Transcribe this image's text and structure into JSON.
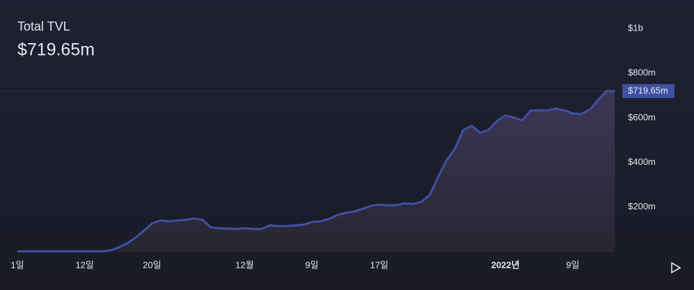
{
  "chart_data": {
    "type": "area",
    "title": "Total TVL",
    "subtitle": "$719.65m",
    "categories": [
      "1일",
      null,
      null,
      null,
      null,
      null,
      null,
      null,
      "12일",
      null,
      null,
      null,
      null,
      null,
      null,
      null,
      "20일",
      null,
      null,
      null,
      null,
      null,
      null,
      null,
      null,
      null,
      null,
      "12월",
      null,
      null,
      null,
      null,
      null,
      null,
      null,
      "9일",
      null,
      null,
      null,
      null,
      null,
      null,
      null,
      "17일",
      null,
      null,
      null,
      null,
      null,
      null,
      null,
      null,
      null,
      null,
      null,
      null,
      null,
      null,
      "2022년",
      null,
      null,
      null,
      null,
      null,
      null,
      null,
      "9일",
      null,
      null,
      null,
      null,
      null
    ],
    "series": [
      {
        "color": "#3f51a3",
        "values": [
          2,
          2,
          2,
          2,
          2,
          2,
          2,
          2,
          2,
          2,
          2,
          6,
          19,
          37,
          62,
          93,
          127,
          140,
          136,
          140,
          143,
          149,
          143,
          109,
          105,
          104,
          102,
          105,
          102,
          102,
          118,
          115,
          115,
          118,
          121,
          133,
          136,
          146,
          164,
          174,
          180,
          192,
          205,
          211,
          208,
          208,
          217,
          214,
          223,
          254,
          335,
          409,
          462,
          546,
          564,
          533,
          546,
          586,
          611,
          601,
          589,
          633,
          633,
          633,
          642,
          633,
          620,
          617,
          636,
          679,
          719.65,
          719.65
        ],
        "value_labels": [
          null,
          null,
          null,
          null,
          null,
          null,
          null,
          null,
          null,
          null,
          null,
          null,
          null,
          null,
          null,
          null,
          null,
          null,
          null,
          null,
          null,
          null,
          null,
          null,
          null,
          null,
          null,
          null,
          null,
          null,
          null,
          null,
          null,
          null,
          null,
          null,
          null,
          null,
          null,
          null,
          null,
          null,
          null,
          null,
          null,
          null,
          null,
          null,
          null,
          null,
          null,
          null,
          null,
          null,
          null,
          null,
          null,
          null,
          null,
          null,
          null,
          null,
          null,
          null,
          null,
          null,
          null,
          null,
          null,
          null,
          null,
          "$719.65m"
        ]
      }
    ],
    "ylim": [
      0,
      1000
    ],
    "yticks": [
      {
        "value": 200,
        "label": "$200m"
      },
      {
        "value": 400,
        "label": "$400m"
      },
      {
        "value": 600,
        "label": "$600m"
      },
      {
        "value": 800,
        "label": "$800m"
      },
      {
        "value": 1000,
        "label": "$1b"
      }
    ]
  }
}
